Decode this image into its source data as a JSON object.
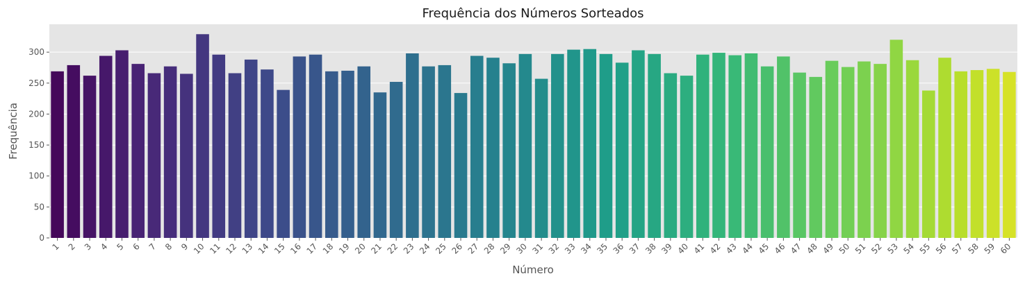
{
  "chart_data": {
    "type": "bar",
    "title": "Frequência dos Números Sorteados",
    "xlabel": "Número",
    "ylabel": "Frequência",
    "ylim": [
      0,
      345
    ],
    "yticks": [
      0,
      50,
      100,
      150,
      200,
      250,
      300
    ],
    "grid": true,
    "palette": "viridis",
    "categories": [
      "1",
      "2",
      "3",
      "4",
      "5",
      "6",
      "7",
      "8",
      "9",
      "10",
      "11",
      "12",
      "13",
      "14",
      "15",
      "16",
      "17",
      "18",
      "19",
      "20",
      "21",
      "22",
      "23",
      "24",
      "25",
      "26",
      "27",
      "28",
      "29",
      "30",
      "31",
      "32",
      "33",
      "34",
      "35",
      "36",
      "37",
      "38",
      "39",
      "40",
      "41",
      "42",
      "43",
      "44",
      "45",
      "46",
      "47",
      "48",
      "49",
      "50",
      "51",
      "52",
      "53",
      "54",
      "55",
      "56",
      "57",
      "58",
      "59",
      "60"
    ],
    "values": [
      269,
      279,
      262,
      294,
      303,
      281,
      266,
      277,
      265,
      329,
      296,
      266,
      288,
      272,
      239,
      293,
      296,
      269,
      270,
      277,
      235,
      252,
      298,
      277,
      279,
      234,
      294,
      291,
      282,
      297,
      257,
      297,
      304,
      305,
      297,
      283,
      303,
      297,
      266,
      262,
      296,
      299,
      295,
      298,
      277,
      293,
      267,
      260,
      286,
      276,
      285,
      281,
      320,
      287,
      238,
      291,
      269,
      271,
      273,
      268
    ],
    "colors": {
      "plot_background": "#e5e5e5",
      "grid": "#ffffff",
      "viridis_stops": [
        "#440154",
        "#482878",
        "#3e4989",
        "#31688e",
        "#26828e",
        "#1f9e89",
        "#35b779",
        "#6ece58",
        "#b5de2b",
        "#fde725"
      ]
    }
  }
}
